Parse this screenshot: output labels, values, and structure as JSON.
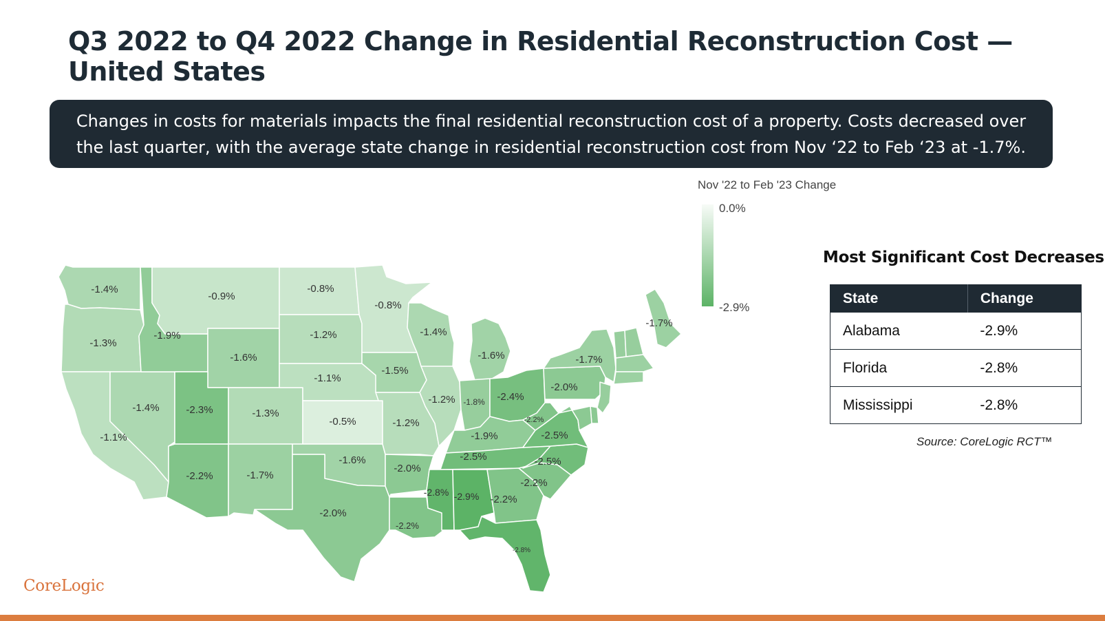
{
  "header": {
    "title": "Q3 2022 to Q4 2022 Change in Residential Reconstruction Cost — United States"
  },
  "banner": {
    "text": "Changes in costs for materials impacts the final residential reconstruction cost of a property. Costs decreased over the last quarter, with the average state change in residential reconstruction cost from Nov ‘22 to Feb ‘23 at -1.7%."
  },
  "legend": {
    "title": "Nov '22 to Feb '23 Change",
    "max_label": "0.0%",
    "min_label": "-2.9%",
    "color_light": "#f7fbf7",
    "color_dark": "#5cb366",
    "domain": [
      0.0,
      -2.9
    ]
  },
  "map_data": {
    "regions": [
      {
        "id": "WA",
        "label": "-1.4%",
        "value": -1.4
      },
      {
        "id": "OR",
        "label": "-1.3%",
        "value": -1.3
      },
      {
        "id": "CA",
        "label": "-1.1%",
        "value": -1.1
      },
      {
        "id": "NV",
        "label": "-1.4%",
        "value": -1.4
      },
      {
        "id": "ID",
        "label": "-1.9%",
        "value": -1.9
      },
      {
        "id": "MT",
        "label": "-0.9%",
        "value": -0.9
      },
      {
        "id": "WY",
        "label": "-1.6%",
        "value": -1.6
      },
      {
        "id": "UT",
        "label": "-2.3%",
        "value": -2.3
      },
      {
        "id": "AZ",
        "label": "-2.2%",
        "value": -2.2
      },
      {
        "id": "CO",
        "label": "-1.3%",
        "value": -1.3
      },
      {
        "id": "NM",
        "label": "-1.7%",
        "value": -1.7
      },
      {
        "id": "ND",
        "label": "-0.8%",
        "value": -0.8
      },
      {
        "id": "SD",
        "label": "-1.2%",
        "value": -1.2
      },
      {
        "id": "NE",
        "label": "-1.1%",
        "value": -1.1
      },
      {
        "id": "KS",
        "label": "-0.5%",
        "value": -0.5
      },
      {
        "id": "OK",
        "label": "-1.6%",
        "value": -1.6
      },
      {
        "id": "TX",
        "label": "-2.0%",
        "value": -2.0
      },
      {
        "id": "MN",
        "label": "-0.8%",
        "value": -0.8
      },
      {
        "id": "IA",
        "label": "-1.5%",
        "value": -1.5
      },
      {
        "id": "MO",
        "label": "-1.2%",
        "value": -1.2
      },
      {
        "id": "AR",
        "label": "-2.0%",
        "value": -2.0
      },
      {
        "id": "LA",
        "label": "-2.2%",
        "value": -2.2
      },
      {
        "id": "WI",
        "label": "-1.4%",
        "value": -1.4
      },
      {
        "id": "IL",
        "label": "-1.2%",
        "value": -1.2
      },
      {
        "id": "MI",
        "label": "-1.6%",
        "value": -1.6
      },
      {
        "id": "IN",
        "label": "-1.8%",
        "value": -1.8
      },
      {
        "id": "OH",
        "label": "-2.4%",
        "value": -2.4
      },
      {
        "id": "KY",
        "label": "-1.9%",
        "value": -1.9
      },
      {
        "id": "TN",
        "label": "-2.5%",
        "value": -2.5
      },
      {
        "id": "MS",
        "label": "-2.8%",
        "value": -2.8
      },
      {
        "id": "AL",
        "label": "-2.9%",
        "value": -2.9
      },
      {
        "id": "GA",
        "label": "-2.2%",
        "value": -2.2
      },
      {
        "id": "FL",
        "label": "-2.8%",
        "value": -2.8
      },
      {
        "id": "SC",
        "label": "-2.2%",
        "value": -2.2
      },
      {
        "id": "NC",
        "label": "-2.5%",
        "value": -2.5
      },
      {
        "id": "VA",
        "label": "-2.5%",
        "value": -2.5
      },
      {
        "id": "WV",
        "label": "-2.2%",
        "value": -2.2
      },
      {
        "id": "PA",
        "label": "-2.0%",
        "value": -2.0
      },
      {
        "id": "NY",
        "label": "-1.7%",
        "value": -1.7
      },
      {
        "id": "ME",
        "label": "-1.7%",
        "value": -1.7
      },
      {
        "id": "VT",
        "label": "",
        "value": -1.8
      },
      {
        "id": "NH",
        "label": "",
        "value": -1.8
      },
      {
        "id": "MA",
        "label": "",
        "value": -1.7
      },
      {
        "id": "CT",
        "label": "",
        "value": -1.7
      },
      {
        "id": "NJ",
        "label": "",
        "value": -1.8
      },
      {
        "id": "DE",
        "label": "",
        "value": -2.0
      },
      {
        "id": "MD",
        "label": "",
        "value": -2.0
      }
    ]
  },
  "table": {
    "heading": "Most Significant Cost Decreases",
    "columns": [
      "State",
      "Change"
    ],
    "rows": [
      {
        "state": "Alabama",
        "change": "-2.9%"
      },
      {
        "state": "Florida",
        "change": "-2.8%"
      },
      {
        "state": "Mississippi",
        "change": "-2.8%"
      }
    ]
  },
  "source": "Source: CoreLogic RCT™",
  "logo": "CoreLogic",
  "colors": {
    "dark": "#1f2a33",
    "accent": "#dc7d3f"
  }
}
